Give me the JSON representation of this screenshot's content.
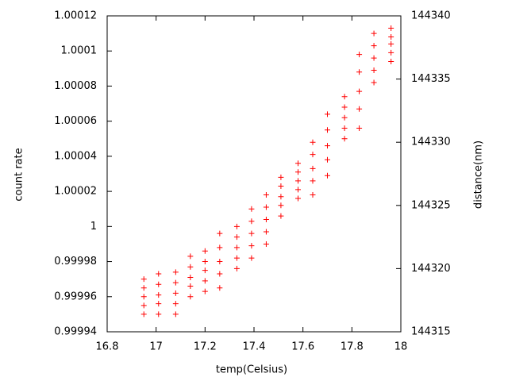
{
  "chart_data": {
    "type": "scatter",
    "xlabel": "temp(Celsius)",
    "ylabel": "count rate",
    "y2label": "distance(nm)",
    "color": "#ff0000",
    "xlim": [
      16.8,
      18
    ],
    "xticks": [
      16.8,
      17,
      17.2,
      17.4,
      17.6,
      17.8,
      18
    ],
    "ylim": [
      0.99994,
      1.00012
    ],
    "yticks": [
      0.99994,
      0.99996,
      0.99998,
      1,
      1.00002,
      1.00004,
      1.00006,
      1.00008,
      1.0001,
      1.00012
    ],
    "y2lim": [
      144315,
      144340
    ],
    "y2ticks": [
      144315,
      144320,
      144325,
      144330,
      144335,
      144340
    ],
    "x": [
      16.95,
      16.95,
      16.95,
      16.95,
      16.95,
      17.01,
      17.01,
      17.01,
      17.01,
      17.01,
      17.08,
      17.08,
      17.08,
      17.08,
      17.08,
      17.14,
      17.14,
      17.14,
      17.14,
      17.14,
      17.2,
      17.2,
      17.2,
      17.2,
      17.2,
      17.26,
      17.26,
      17.26,
      17.26,
      17.26,
      17.33,
      17.33,
      17.33,
      17.33,
      17.33,
      17.39,
      17.39,
      17.39,
      17.39,
      17.39,
      17.45,
      17.45,
      17.45,
      17.45,
      17.45,
      17.51,
      17.51,
      17.51,
      17.51,
      17.51,
      17.58,
      17.58,
      17.58,
      17.58,
      17.58,
      17.64,
      17.64,
      17.64,
      17.64,
      17.64,
      17.7,
      17.7,
      17.7,
      17.7,
      17.7,
      17.77,
      17.77,
      17.77,
      17.77,
      17.77,
      17.83,
      17.83,
      17.83,
      17.83,
      17.83,
      17.89,
      17.89,
      17.89,
      17.89,
      17.89,
      17.96,
      17.96,
      17.96,
      17.96,
      17.96
    ],
    "values": [
      0.99995,
      0.999955,
      0.99996,
      0.999965,
      0.99997,
      0.99995,
      0.999956,
      0.999961,
      0.999967,
      0.999973,
      0.99995,
      0.999956,
      0.999962,
      0.999968,
      0.999974,
      0.99996,
      0.999966,
      0.999971,
      0.999977,
      0.999983,
      0.999963,
      0.999969,
      0.999975,
      0.99998,
      0.999986,
      0.999965,
      0.999973,
      0.99998,
      0.999988,
      0.999996,
      0.999976,
      0.999982,
      0.999988,
      0.999994,
      1,
      0.999982,
      0.999989,
      0.999996,
      1.000003,
      1.00001,
      0.99999,
      0.999997,
      1.000004,
      1.000011,
      1.000018,
      1.000006,
      1.000012,
      1.000017,
      1.000023,
      1.000028,
      1.000016,
      1.000021,
      1.000026,
      1.000031,
      1.000036,
      1.000018,
      1.000026,
      1.000033,
      1.000041,
      1.000048,
      1.000029,
      1.000038,
      1.000046,
      1.000055,
      1.000064,
      1.00005,
      1.000056,
      1.000062,
      1.000068,
      1.000074,
      1.000056,
      1.000067,
      1.000077,
      1.000088,
      1.000098,
      1.000082,
      1.000089,
      1.000096,
      1.000103,
      1.00011,
      1.000094,
      1.000099,
      1.000104,
      1.000108,
      1.000113
    ]
  }
}
